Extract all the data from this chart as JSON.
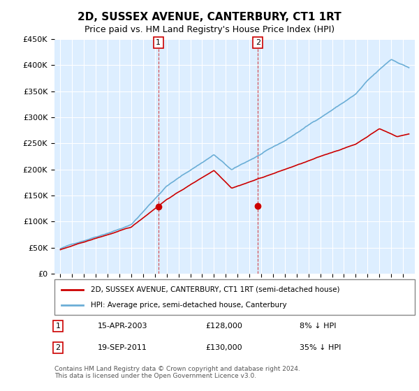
{
  "title": "2D, SUSSEX AVENUE, CANTERBURY, CT1 1RT",
  "subtitle": "Price paid vs. HM Land Registry's House Price Index (HPI)",
  "hpi_color": "#6baed6",
  "price_color": "#cc0000",
  "background_color": "#ffffff",
  "plot_bg_color": "#ddeeff",
  "grid_color": "#ffffff",
  "ylim": [
    0,
    450000
  ],
  "yticks": [
    0,
    50000,
    100000,
    150000,
    200000,
    250000,
    300000,
    350000,
    400000,
    450000
  ],
  "ytick_labels": [
    "£0",
    "£50K",
    "£100K",
    "£150K",
    "£200K",
    "£250K",
    "£300K",
    "£350K",
    "£400K",
    "£450K"
  ],
  "legend_line1": "2D, SUSSEX AVENUE, CANTERBURY, CT1 1RT (semi-detached house)",
  "legend_line2": "HPI: Average price, semi-detached house, Canterbury",
  "annotation1_label": "1",
  "annotation1_date": "15-APR-2003",
  "annotation1_price": "£128,000",
  "annotation1_hpi": "8% ↓ HPI",
  "annotation2_label": "2",
  "annotation2_date": "19-SEP-2011",
  "annotation2_price": "£130,000",
  "annotation2_hpi": "35% ↓ HPI",
  "footer": "Contains HM Land Registry data © Crown copyright and database right 2024.\nThis data is licensed under the Open Government Licence v3.0.",
  "sale1_year": 2003.29,
  "sale1_value": 128000,
  "sale2_year": 2011.72,
  "sale2_value": 130000
}
